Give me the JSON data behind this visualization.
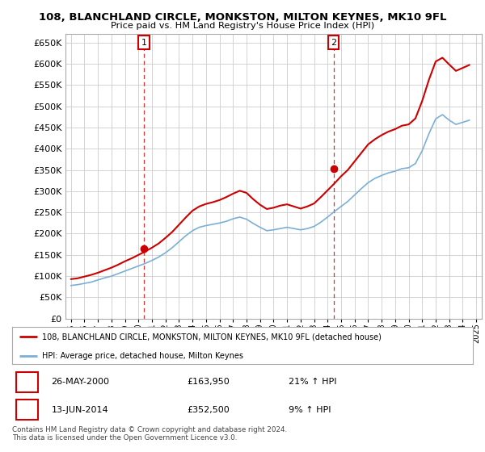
{
  "title": "108, BLANCHLAND CIRCLE, MONKSTON, MILTON KEYNES, MK10 9FL",
  "subtitle": "Price paid vs. HM Land Registry's House Price Index (HPI)",
  "ylim": [
    0,
    670000
  ],
  "yticks": [
    0,
    50000,
    100000,
    150000,
    200000,
    250000,
    300000,
    350000,
    400000,
    450000,
    500000,
    550000,
    600000,
    650000
  ],
  "legend_line1": "108, BLANCHLAND CIRCLE, MONKSTON, MILTON KEYNES, MK10 9FL (detached house)",
  "legend_line2": "HPI: Average price, detached house, Milton Keynes",
  "transaction1_date": "26-MAY-2000",
  "transaction1_price": "£163,950",
  "transaction1_hpi": "21% ↑ HPI",
  "transaction2_date": "13-JUN-2014",
  "transaction2_price": "£352,500",
  "transaction2_hpi": "9% ↑ HPI",
  "footer": "Contains HM Land Registry data © Crown copyright and database right 2024.\nThis data is licensed under the Open Government Licence v3.0.",
  "red_color": "#cc0000",
  "blue_color": "#7bafd4",
  "grid_color": "#cccccc",
  "background_color": "#ffffff",
  "marker1_x": 2000.4,
  "marker1_y": 163950,
  "marker2_x": 2014.45,
  "marker2_y": 352500,
  "xlim_left": 1994.6,
  "xlim_right": 2025.4
}
